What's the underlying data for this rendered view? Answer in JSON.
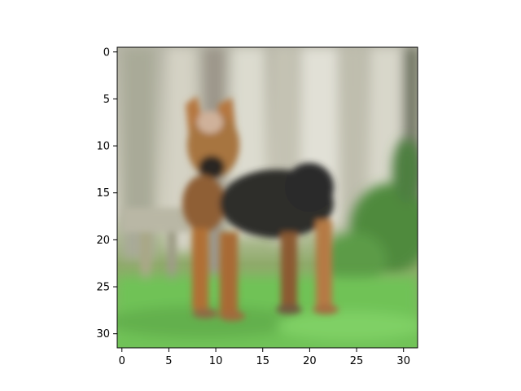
{
  "image": {
    "subject": "dog",
    "rendered_as": "imshow of a blurry 32x32 photo",
    "dominant_colors": {
      "fence": "#c8c6b6",
      "grass": "#6fbf52",
      "dog_dark": "#2e2c2a",
      "dog_tan": "#b5743b"
    }
  },
  "chart_data": {
    "type": "heatmap",
    "x_ticks": [
      "0",
      "5",
      "10",
      "15",
      "20",
      "25",
      "30"
    ],
    "y_ticks": [
      "0",
      "5",
      "10",
      "15",
      "20",
      "25",
      "30"
    ],
    "x_tick_values": [
      0,
      5,
      10,
      15,
      20,
      25,
      30
    ],
    "y_tick_values": [
      0,
      5,
      10,
      15,
      20,
      25,
      30
    ],
    "xlim": [
      -0.5,
      31.5
    ],
    "ylim": [
      31.5,
      -0.5
    ],
    "title": "",
    "xlabel": "",
    "ylabel": "",
    "grid": false
  }
}
